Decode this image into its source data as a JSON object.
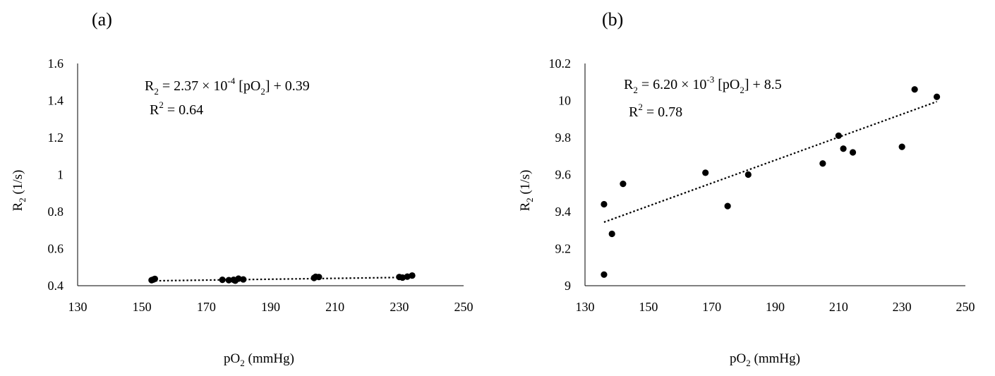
{
  "chart_data": [
    {
      "type": "scatter",
      "panel_label": "(a)",
      "xlabel": {
        "base": "pO",
        "sub": "2",
        "rest": " (mmHg)"
      },
      "ylabel": {
        "base": "R",
        "sub": "2",
        "rest": " (1/s)"
      },
      "xlim": [
        130,
        250
      ],
      "ylim": [
        0.4,
        1.6
      ],
      "xticks": [
        "130",
        "150",
        "170",
        "190",
        "210",
        "230",
        "250"
      ],
      "yticks": [
        "0.4",
        "0.6",
        "0.8",
        "1",
        "1.2",
        "1.4",
        "1.6"
      ],
      "grid": false,
      "legend": "none",
      "equation": {
        "lhs": "R",
        "lhs_sub": "2",
        "mid1": " = 2.37 × 10",
        "exp": "-4",
        "mid2": " [pO",
        "mid2_sub": "2",
        "rhs": "] + 0.39"
      },
      "r2": {
        "base": "R",
        "sup": "2",
        "rest": " = 0.64"
      },
      "trendline": {
        "slope": 0.000237,
        "intercept": 0.39,
        "x_range": [
          153,
          234
        ]
      },
      "x": [
        153,
        153.5,
        154,
        175,
        177,
        178.5,
        179,
        180,
        181.5,
        203.5,
        204,
        205,
        230,
        231,
        232.5,
        234
      ],
      "y": [
        0.43,
        0.433,
        0.437,
        0.432,
        0.43,
        0.432,
        0.427,
        0.438,
        0.434,
        0.442,
        0.448,
        0.447,
        0.447,
        0.444,
        0.449,
        0.455
      ]
    },
    {
      "type": "scatter",
      "panel_label": "(b)",
      "xlabel": {
        "base": "pO",
        "sub": "2",
        "rest": " (mmHg)"
      },
      "ylabel": {
        "base": "R",
        "sub": "2",
        "rest": " (1/s)"
      },
      "xlim": [
        130,
        250
      ],
      "ylim": [
        9,
        10.2
      ],
      "xticks": [
        "130",
        "150",
        "170",
        "190",
        "210",
        "230",
        "250"
      ],
      "yticks": [
        "9",
        "9.2",
        "9.4",
        "9.6",
        "9.8",
        "10",
        "10.2"
      ],
      "grid": false,
      "legend": "none",
      "equation": {
        "lhs": "R",
        "lhs_sub": "2",
        "mid1": " = 6.20 × 10",
        "exp": "-3",
        "mid2": " [pO",
        "mid2_sub": "2",
        "rhs": "] + 8.5"
      },
      "r2": {
        "base": "R",
        "sup": "2",
        "rest": " = 0.78"
      },
      "trendline": {
        "slope": 0.0062,
        "intercept": 8.5,
        "x_range": [
          136,
          241
        ]
      },
      "x": [
        136,
        136,
        138.5,
        142,
        168,
        175,
        181.5,
        205,
        210,
        211.5,
        214.5,
        230,
        234,
        241
      ],
      "y": [
        9.06,
        9.44,
        9.28,
        9.55,
        9.61,
        9.43,
        9.6,
        9.66,
        9.81,
        9.74,
        9.72,
        9.75,
        10.06,
        10.02
      ]
    }
  ]
}
